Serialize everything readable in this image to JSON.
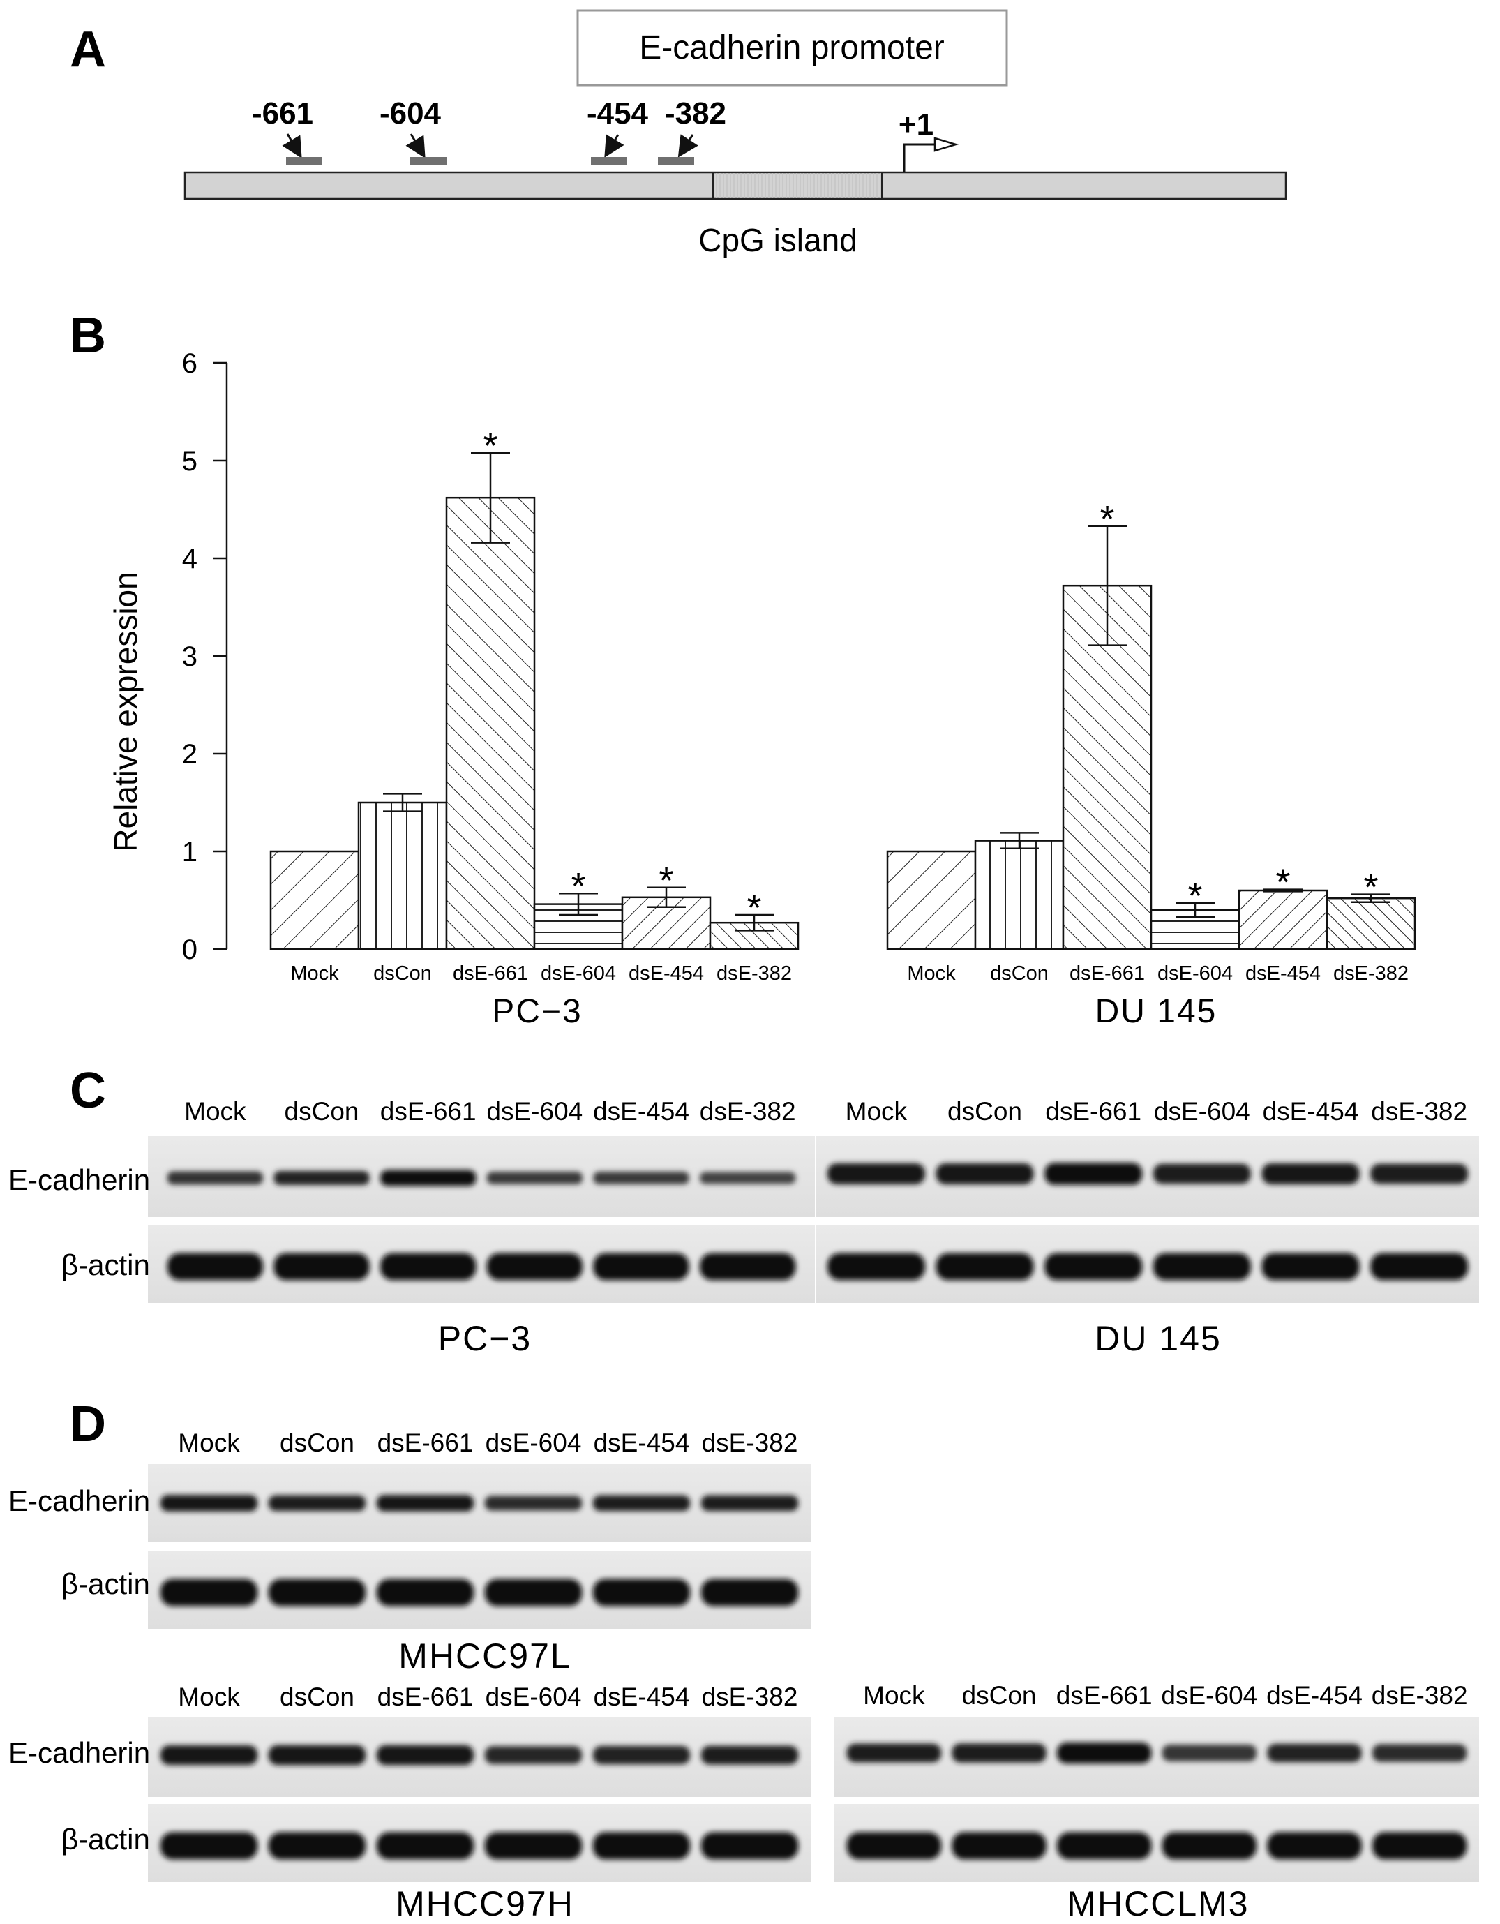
{
  "panel_a": {
    "letter": "A",
    "title": "E-cadherin promoter",
    "sites": [
      "-661",
      "-604",
      "-454",
      "-382"
    ],
    "tss": "+1",
    "cpg": "CpG island"
  },
  "panel_b": {
    "letter": "B"
  },
  "panel_c": {
    "letter": "C"
  },
  "panel_d": {
    "letter": "D"
  },
  "lanes": [
    "Mock",
    "dsCon",
    "dsE-661",
    "dsE-604",
    "dsE-454",
    "dsE-382"
  ],
  "blot_labels": {
    "ecad": "E-cadherin",
    "actin": "β-actin"
  },
  "cell_lines": {
    "pc3": "PC−3",
    "du145": "DU 145",
    "mhcc97l": "MHCC97L",
    "mhcc97h": "MHCC97H",
    "mhcclm3": "MHCCLM3"
  },
  "chart_data": {
    "type": "bar",
    "ylabel": "Relative expression",
    "ylim": [
      0,
      6
    ],
    "yticks": [
      "0",
      "1",
      "2",
      "3",
      "4",
      "5",
      "6"
    ],
    "categories": [
      "Mock",
      "dsCon",
      "dsE-661",
      "dsE-604",
      "dsE-454",
      "dsE-382"
    ],
    "groups": [
      {
        "label": "PC−3",
        "values": [
          1.0,
          1.5,
          4.62,
          0.46,
          0.53,
          0.27
        ],
        "errors": [
          0,
          0.09,
          0.46,
          0.11,
          0.1,
          0.08
        ],
        "significant": [
          false,
          false,
          true,
          true,
          true,
          true
        ]
      },
      {
        "label": "DU 145",
        "values": [
          1.0,
          1.11,
          3.72,
          0.4,
          0.6,
          0.52
        ],
        "errors": [
          0,
          0.08,
          0.61,
          0.07,
          0.01,
          0.04
        ],
        "significant": [
          false,
          false,
          true,
          true,
          true,
          true
        ]
      }
    ],
    "annotation": "*"
  }
}
